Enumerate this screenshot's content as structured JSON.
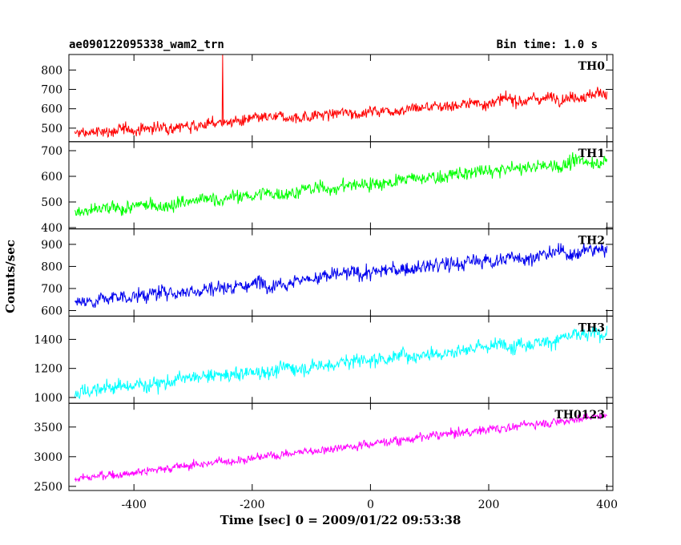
{
  "chart_data": {
    "type": "line",
    "title_left": "ae090122095338_wam2_trn",
    "title_right": "Bin time: 1.0 s",
    "xlabel": "Time [sec] 0 = 2009/01/22 09:53:38",
    "ylabel": "Counts/sec",
    "xlim": [
      -510,
      410
    ],
    "x_ticks": [
      -400,
      -200,
      0,
      200,
      400
    ],
    "x_data_range": [
      -500,
      400
    ],
    "bin": 1.0,
    "panels": [
      {
        "name": "TH0",
        "color": "#ff0000",
        "ylim": [
          430,
          880
        ],
        "y_ticks": [
          500,
          600,
          700,
          800
        ],
        "trend": {
          "start": 470,
          "end": 680
        },
        "noise": 25,
        "spike": {
          "x": -250,
          "y": 880
        }
      },
      {
        "name": "TH1",
        "color": "#00ff00",
        "ylim": [
          395,
          735
        ],
        "y_ticks": [
          400,
          500,
          600,
          700
        ],
        "trend": {
          "start": 455,
          "end": 665
        },
        "noise": 22
      },
      {
        "name": "TH2",
        "color": "#0000ee",
        "ylim": [
          575,
          970
        ],
        "y_ticks": [
          600,
          700,
          800,
          900
        ],
        "trend": {
          "start": 640,
          "end": 880
        },
        "noise": 28
      },
      {
        "name": "TH3",
        "color": "#00ffff",
        "ylim": [
          960,
          1560
        ],
        "y_ticks": [
          1000,
          1200,
          1400
        ],
        "trend": {
          "start": 1040,
          "end": 1440
        },
        "noise": 42
      },
      {
        "name": "TH0123",
        "color": "#ff00ff",
        "ylim": [
          2430,
          3900
        ],
        "y_ticks": [
          2500,
          3000,
          3500
        ],
        "trend": {
          "start": 2620,
          "end": 3700
        },
        "noise": 60
      }
    ]
  }
}
